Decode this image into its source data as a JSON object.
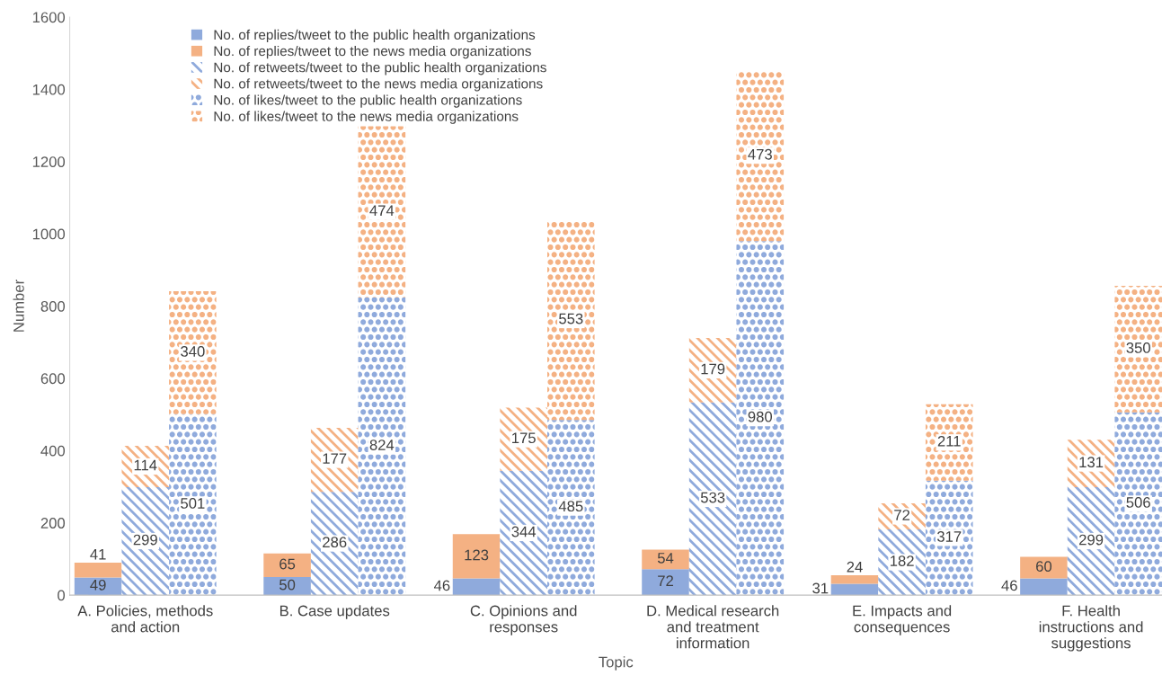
{
  "chart_data": {
    "type": "bar",
    "stacked": true,
    "xlabel": "Topic",
    "ylabel": "Number",
    "ylim": [
      0,
      1600
    ],
    "yticks": [
      0,
      200,
      400,
      600,
      800,
      1000,
      1200,
      1400,
      1600
    ],
    "grid": false,
    "legend": "top left",
    "data_labels": true,
    "categories": [
      null,
      "A. Policies, methods\nand action",
      null,
      null,
      null,
      "B. Case updates",
      null,
      null,
      null,
      "C. Opinions and\nresponses",
      null,
      null,
      null,
      "D. Medical research\nand treatment\ninformation",
      null,
      null,
      null,
      "E. Impacts and\nconsequences",
      null,
      null,
      null,
      "F. Health\ninstructions and\nsuggestions",
      null
    ],
    "series": [
      {
        "name": "No. of replies/tweet to the public health organizations",
        "color": "#8faadc",
        "values": [
          49,
          null,
          null,
          null,
          50,
          null,
          null,
          null,
          46,
          null,
          null,
          null,
          72,
          null,
          null,
          null,
          31,
          null,
          null,
          null,
          46,
          null,
          null
        ]
      },
      {
        "name": "No. of replies/tweet to the news media organizations",
        "color": "#f4b183",
        "values": [
          41,
          null,
          null,
          null,
          65,
          null,
          null,
          null,
          123,
          null,
          null,
          null,
          54,
          null,
          null,
          null,
          24,
          null,
          null,
          null,
          60,
          null,
          null
        ]
      },
      {
        "name": "No. of retweets/tweet to the public health organizations",
        "color": "#8faadc",
        "values": [
          null,
          299,
          null,
          null,
          null,
          286,
          null,
          null,
          null,
          344,
          null,
          null,
          null,
          533,
          null,
          null,
          null,
          182,
          null,
          null,
          null,
          299,
          null
        ]
      },
      {
        "name": "No. of retweets/tweet to the news media organizations",
        "color": "#f4b183",
        "values": [
          null,
          114,
          null,
          null,
          null,
          177,
          null,
          null,
          null,
          175,
          null,
          null,
          null,
          179,
          null,
          null,
          null,
          72,
          null,
          null,
          null,
          131,
          null
        ]
      },
      {
        "name": "No. of likes/tweet to the public health organizations",
        "color": "#8faadc",
        "values": [
          null,
          null,
          501,
          null,
          null,
          null,
          824,
          null,
          null,
          null,
          485,
          null,
          null,
          null,
          980,
          null,
          null,
          null,
          317,
          null,
          null,
          null,
          506
        ]
      },
      {
        "name": "No. of likes/tweet to the news media organizations",
        "color": "#f4b183",
        "values": [
          null,
          null,
          340,
          null,
          null,
          null,
          474,
          null,
          null,
          null,
          553,
          null,
          null,
          null,
          473,
          null,
          null,
          null,
          211,
          null,
          null,
          null,
          350
        ]
      }
    ]
  }
}
